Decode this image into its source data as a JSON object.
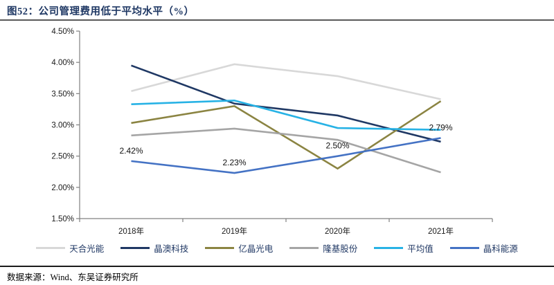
{
  "header": {
    "title": "图52：公司管理费用低于平均水平（%）"
  },
  "footer": {
    "source": "数据来源：Wind、东吴证券研究所"
  },
  "chart_data": {
    "type": "line",
    "title": "公司管理费用低于平均水平（%）",
    "categories": [
      "2018年",
      "2019年",
      "2020年",
      "2021年"
    ],
    "y_ticks": [
      "4.50%",
      "4.00%",
      "3.50%",
      "3.00%",
      "2.50%",
      "2.00%",
      "1.50%"
    ],
    "ylim": [
      1.5,
      4.5
    ],
    "xlabel": "",
    "ylabel": "",
    "grid": false,
    "legend_position": "bottom",
    "series": [
      {
        "name": "天合光能",
        "color": "#d8d8d8",
        "values": [
          3.54,
          3.97,
          3.78,
          3.41
        ]
      },
      {
        "name": "晶澳科技",
        "color": "#1f3864",
        "values": [
          3.95,
          3.34,
          3.15,
          2.73
        ]
      },
      {
        "name": "亿晶光电",
        "color": "#8b8442",
        "values": [
          3.03,
          3.3,
          2.3,
          3.38
        ]
      },
      {
        "name": "隆基股份",
        "color": "#a5a5a5",
        "values": [
          2.83,
          2.94,
          2.76,
          2.24
        ]
      },
      {
        "name": "平均值",
        "color": "#27b2e5",
        "values": [
          3.33,
          3.39,
          2.95,
          2.92
        ]
      },
      {
        "name": "晶科能源",
        "color": "#4472c4",
        "values": [
          2.42,
          2.23,
          2.5,
          2.79
        ],
        "data_labels": [
          "2.42%",
          "2.23%",
          "2.50%",
          "2.79%"
        ]
      }
    ]
  }
}
